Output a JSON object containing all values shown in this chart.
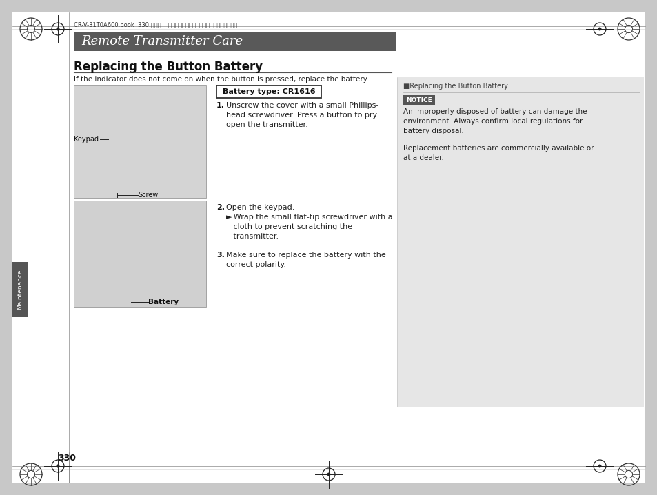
{
  "bg_color": "#ffffff",
  "page_bg": "#ffffff",
  "outer_bg": "#c8c8c8",
  "header_bar_color": "#595959",
  "header_text": "Remote Transmitter Care",
  "header_text_color": "#ffffff",
  "header_font_size": 13,
  "file_info": "CR-V-31T0A600.book  330 ページ　0　2011年8月8日\u0000月曜日\u0000午後6時26分",
  "file_info_display": "CR-V-31T0A600.book  330 ページ  ２０１１年８月８日  月曜日  午後６時２６分",
  "section_title": "Replacing the Button Battery",
  "section_title_size": 12,
  "intro_text": "If the indicator does not come on when the button is pressed, replace the battery.",
  "battery_box_text": "Battery type: CR1616",
  "step1_num": "1.",
  "step1_text": "Unscrew the cover with a small Phillips-\nhead screwdriver. Press a button to pry\nopen the transmitter.",
  "step2_num": "2.",
  "step2_text": "Open the keypad.",
  "step2b_text": "► Wrap the small flat-tip screwdriver with a\n   cloth to prevent scratching the\n   transmitter.",
  "step3_num": "3.",
  "step3_text": "Make sure to replace the battery with the\ncorrect polarity.",
  "keypad_label": "Keypad",
  "screw_label": "Screw",
  "battery_label": "Battery",
  "right_section_title": "■Replacing the Button Battery",
  "notice_box_color": "#555555",
  "notice_text": "NOTICE",
  "notice_body1": "An improperly disposed of battery can damage the\nenvironment. Always confirm local regulations for\nbattery disposal.",
  "notice_body2": "Replacement batteries are commercially available or\nat a dealer.",
  "maintenance_label": "Maintenance",
  "page_number": "330",
  "right_panel_bg": "#e6e6e6",
  "image_bg1": "#d4d4d4",
  "image_bg2": "#d0d0d0"
}
